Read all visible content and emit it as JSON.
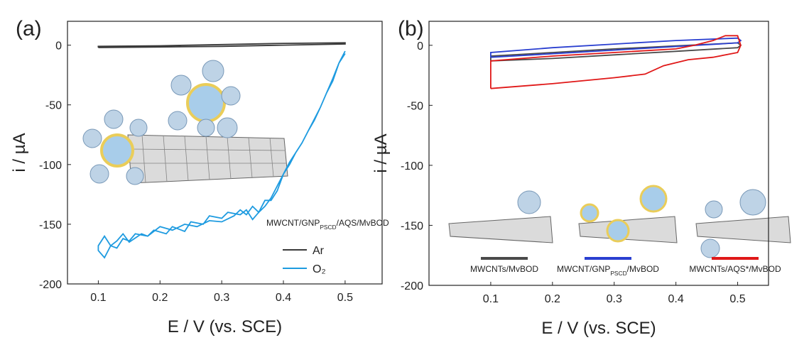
{
  "chart_data": [
    {
      "type": "line",
      "panel_label": "(a)",
      "xlabel": "E / V (vs. SCE)",
      "ylabel": "i / µA",
      "xlim": [
        0.05,
        0.56
      ],
      "ylim": [
        -200,
        20
      ],
      "xticks": [
        0.1,
        0.2,
        0.3,
        0.4,
        0.5
      ],
      "yticks": [
        0,
        -50,
        -100,
        -150,
        -200
      ],
      "annotation": [
        "MWCNT/GNP",
        "PSCD",
        "/AQS/MvBOD"
      ],
      "legend": "lower right",
      "series": [
        {
          "name": "Ar",
          "color": "#3a3a3a",
          "x": [
            0.1,
            0.2,
            0.3,
            0.4,
            0.5,
            0.5,
            0.4,
            0.3,
            0.2,
            0.1,
            0.1
          ],
          "values": [
            -2,
            -1.5,
            -1,
            0,
            1,
            2,
            1.5,
            0.5,
            -0.5,
            -1,
            -2
          ]
        },
        {
          "name": "O₂",
          "color": "#1e9be0",
          "x": [
            0.5,
            0.49,
            0.48,
            0.47,
            0.46,
            0.45,
            0.44,
            0.43,
            0.42,
            0.41,
            0.4,
            0.39,
            0.38,
            0.37,
            0.36,
            0.35,
            0.34,
            0.33,
            0.31,
            0.3,
            0.28,
            0.27,
            0.25,
            0.24,
            0.22,
            0.21,
            0.19,
            0.18,
            0.16,
            0.15,
            0.14,
            0.13,
            0.12,
            0.11,
            0.1,
            0.1,
            0.11,
            0.12,
            0.13,
            0.14,
            0.15,
            0.17,
            0.18,
            0.2,
            0.22,
            0.24,
            0.26,
            0.28,
            0.3,
            0.32,
            0.33,
            0.34,
            0.35,
            0.36,
            0.37,
            0.38,
            0.39,
            0.4,
            0.41,
            0.42,
            0.43,
            0.44,
            0.45,
            0.46,
            0.47,
            0.48,
            0.49,
            0.5
          ],
          "values": [
            -5,
            -15,
            -30,
            -40,
            -52,
            -63,
            -72,
            -82,
            -90,
            -98,
            -108,
            -118,
            -128,
            -135,
            -140,
            -146,
            -138,
            -142,
            -140,
            -145,
            -143,
            -150,
            -148,
            -156,
            -152,
            -158,
            -155,
            -160,
            -158,
            -164,
            -162,
            -170,
            -168,
            -178,
            -172,
            -168,
            -160,
            -168,
            -164,
            -158,
            -165,
            -158,
            -160,
            -152,
            -155,
            -150,
            -152,
            -147,
            -148,
            -143,
            -138,
            -142,
            -135,
            -140,
            -130,
            -130,
            -122,
            -108,
            -100,
            -90,
            -82,
            -72,
            -62,
            -52,
            -40,
            -28,
            -15,
            -7
          ]
        }
      ]
    },
    {
      "type": "line",
      "panel_label": "(b)",
      "xlabel": "E / V (vs. SCE)",
      "ylabel": "i / µA",
      "xlim": [
        0.0,
        0.55
      ],
      "ylim": [
        -200,
        20
      ],
      "xticks": [
        0.1,
        0.2,
        0.3,
        0.4,
        0.5
      ],
      "yticks": [
        0,
        -50,
        -100,
        -150,
        -200
      ],
      "legend": "bottom",
      "series": [
        {
          "name": "MWCNTs/MvBOD",
          "color": "#4a4a4a",
          "x": [
            0.1,
            0.2,
            0.3,
            0.4,
            0.5,
            0.505,
            0.5,
            0.4,
            0.3,
            0.2,
            0.1,
            0.1
          ],
          "values": [
            -13,
            -11,
            -8,
            -5,
            -2,
            0,
            2,
            -0.5,
            -3,
            -6,
            -9,
            -13
          ]
        },
        {
          "name": [
            "MWCNT/GNP",
            "PSCD",
            "/MvBOD"
          ],
          "color": "#2a3fd0",
          "x": [
            0.1,
            0.2,
            0.3,
            0.4,
            0.5,
            0.505,
            0.5,
            0.4,
            0.3,
            0.2,
            0.1,
            0.1
          ],
          "values": [
            -10,
            -7,
            -4,
            -1,
            2,
            4,
            6,
            4,
            1,
            -2,
            -6,
            -10
          ]
        },
        {
          "name": "MWCNTs/AQS*/MvBOD",
          "color": "#e01818",
          "x": [
            0.1,
            0.2,
            0.3,
            0.35,
            0.38,
            0.42,
            0.46,
            0.5,
            0.505,
            0.5,
            0.48,
            0.46,
            0.43,
            0.4,
            0.3,
            0.2,
            0.1,
            0.1
          ],
          "values": [
            -36,
            -32,
            -27,
            -24,
            -17,
            -12,
            -10,
            -6,
            0,
            8,
            8,
            4,
            0,
            -3,
            -6,
            -9,
            -13,
            -36
          ]
        }
      ]
    }
  ]
}
